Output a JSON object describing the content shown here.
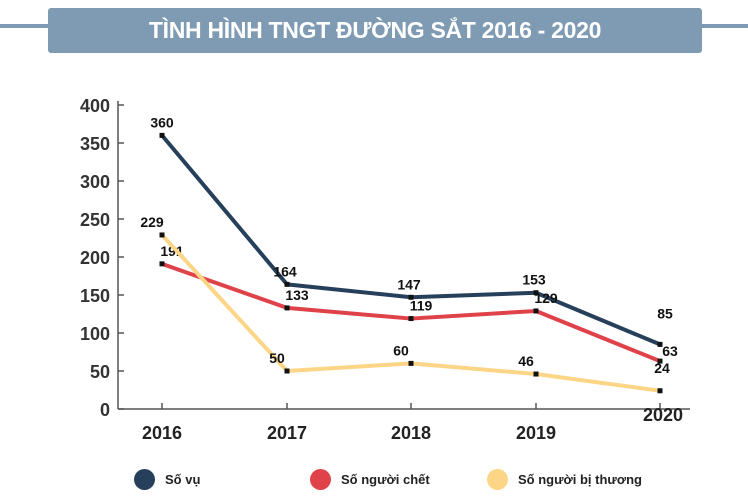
{
  "chart_data": {
    "type": "line",
    "title": "TÌNH HÌNH TNGT ĐƯỜNG SẮT 2016 - 2020",
    "categories": [
      "2016",
      "2017",
      "2018",
      "2019",
      "2020"
    ],
    "ylim": [
      0,
      400
    ],
    "yticks": [
      "0",
      "50",
      "100",
      "150",
      "200",
      "250",
      "300",
      "350",
      "400"
    ],
    "grid": false,
    "legend_position": "bottom",
    "series": [
      {
        "name": "Số vụ",
        "color": "#263f5a",
        "values": [
          360,
          164,
          147,
          153,
          85
        ]
      },
      {
        "name": "Số người chết",
        "color": "#e0424a",
        "values": [
          191,
          133,
          119,
          129,
          63
        ]
      },
      {
        "name": "Số người bị thương",
        "color": "#fcd586",
        "values": [
          229,
          50,
          60,
          46,
          24
        ]
      }
    ]
  }
}
